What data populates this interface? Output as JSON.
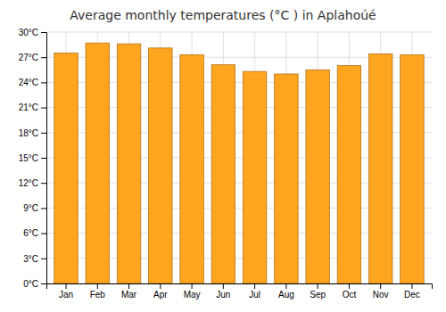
{
  "chart_data": {
    "type": "bar",
    "title": "Average monthly temperatures (°C ) in Aplahoúé",
    "categories": [
      "Jan",
      "Feb",
      "Mar",
      "Apr",
      "May",
      "Jun",
      "Jul",
      "Aug",
      "Sep",
      "Oct",
      "Nov",
      "Dec"
    ],
    "values": [
      27.5,
      28.7,
      28.6,
      28.1,
      27.3,
      26.1,
      25.3,
      25.0,
      25.5,
      26.0,
      27.4,
      27.3
    ],
    "color": "#FFA520",
    "ylim": [
      0,
      30
    ],
    "yticks": [
      {
        "value": 0,
        "label": "0°C"
      },
      {
        "value": 3,
        "label": "3°C"
      },
      {
        "value": 6,
        "label": "6°C"
      },
      {
        "value": 9,
        "label": "9°C"
      },
      {
        "value": 12,
        "label": "12°C"
      },
      {
        "value": 15,
        "label": "15°C"
      },
      {
        "value": 18,
        "label": "18°C"
      },
      {
        "value": 21,
        "label": "21°C"
      },
      {
        "value": 24,
        "label": "24°C"
      },
      {
        "value": 27,
        "label": "27°C"
      },
      {
        "value": 30,
        "label": "30°C"
      }
    ],
    "grid": true
  }
}
